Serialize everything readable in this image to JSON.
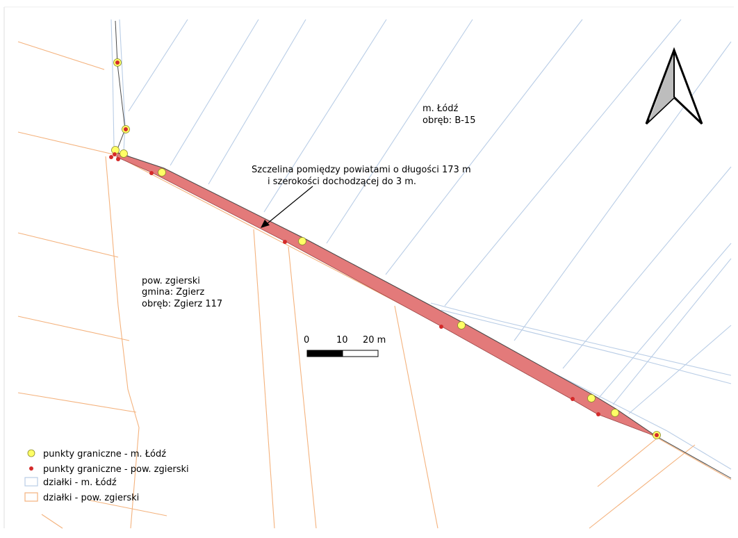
{
  "labels": {
    "lodz_name": "m. Łódź",
    "lodz_obreb": "obręb: B-15",
    "zg_name": "pow. zgierski",
    "zg_gmina": "gmina: Zgierz",
    "zg_obreb": "obręb: Zgierz 117",
    "annotation_line1": "Szczelina pomiędzy powiatami o długości 173 m",
    "annotation_line2": "i szerokości dochodzącej do 3 m."
  },
  "scale_bar": {
    "tick0": "0",
    "tick1": "10",
    "tick2": "20 m"
  },
  "legend": {
    "items": [
      {
        "label": "punkty graniczne - m. Łódź"
      },
      {
        "label": "punkty graniczne - pow. zgierski"
      },
      {
        "label": "działki - m. Łódź"
      },
      {
        "label": "działki - pow. zgierski"
      }
    ]
  },
  "colors": {
    "gap_fill": "#e37a7a",
    "lodz_parcels": "#b9cde6",
    "zgierski_parcels": "#f4b27d",
    "lodz_points": "#ffff66",
    "zgierski_points": "#d42a2a"
  },
  "icons": {
    "north": "north-arrow-icon"
  }
}
